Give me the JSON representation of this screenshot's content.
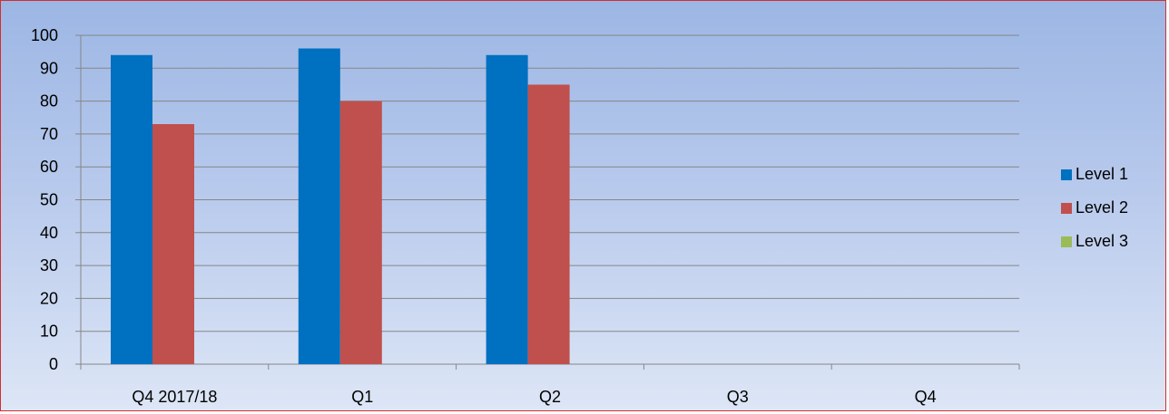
{
  "chart_data": {
    "type": "bar",
    "title": "",
    "xlabel": "",
    "ylabel": "",
    "categories": [
      "Q4 2017/18",
      "Q1",
      "Q2",
      "Q3",
      "Q4"
    ],
    "series": [
      {
        "name": "Level 1",
        "color": "#0070c0",
        "values": [
          94,
          96,
          94,
          null,
          null
        ]
      },
      {
        "name": "Level 2",
        "color": "#c0504d",
        "values": [
          73,
          80,
          85,
          null,
          null
        ]
      },
      {
        "name": "Level 3",
        "color": "#9bbb59",
        "values": [
          null,
          null,
          null,
          null,
          null
        ]
      }
    ],
    "ylim": [
      0,
      100
    ],
    "yticks": [
      0,
      10,
      20,
      30,
      40,
      50,
      60,
      70,
      80,
      90,
      100
    ],
    "grid": true,
    "legend_position": "right",
    "colors": {
      "border": "#d42e2e",
      "gridline": "#868686",
      "axis": "#868686"
    }
  }
}
